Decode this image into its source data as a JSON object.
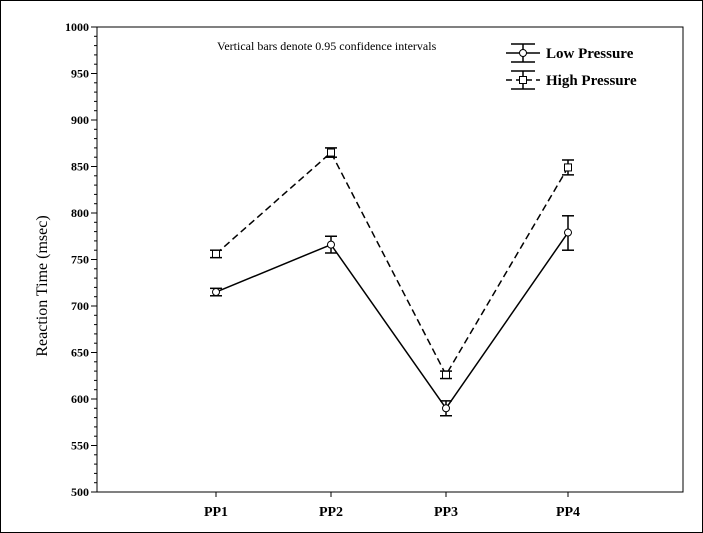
{
  "chart_data": {
    "type": "line",
    "annotation": "Vertical bars denote 0.95 confidence intervals",
    "ylabel": "Reaction Time (msec)",
    "xlabel": "",
    "ylim": [
      500,
      1000
    ],
    "yticks": [
      500,
      550,
      600,
      650,
      700,
      750,
      800,
      850,
      900,
      950,
      1000
    ],
    "categories": [
      "PP1",
      "PP2",
      "PP3",
      "PP4"
    ],
    "legend_position": "top-right",
    "grid": false,
    "series": [
      {
        "name": "Low Pressure",
        "style": "solid",
        "marker": "circle",
        "color": "#000000",
        "values": [
          715,
          766,
          590,
          779
        ],
        "ci_low": [
          711,
          757,
          582,
          760
        ],
        "ci_high": [
          719,
          775,
          598,
          797
        ]
      },
      {
        "name": "High Pressure",
        "style": "dashed",
        "marker": "square",
        "color": "#000000",
        "values": [
          756,
          865,
          626,
          849
        ],
        "ci_low": [
          752,
          860,
          622,
          841
        ],
        "ci_high": [
          760,
          870,
          630,
          857
        ]
      }
    ]
  }
}
